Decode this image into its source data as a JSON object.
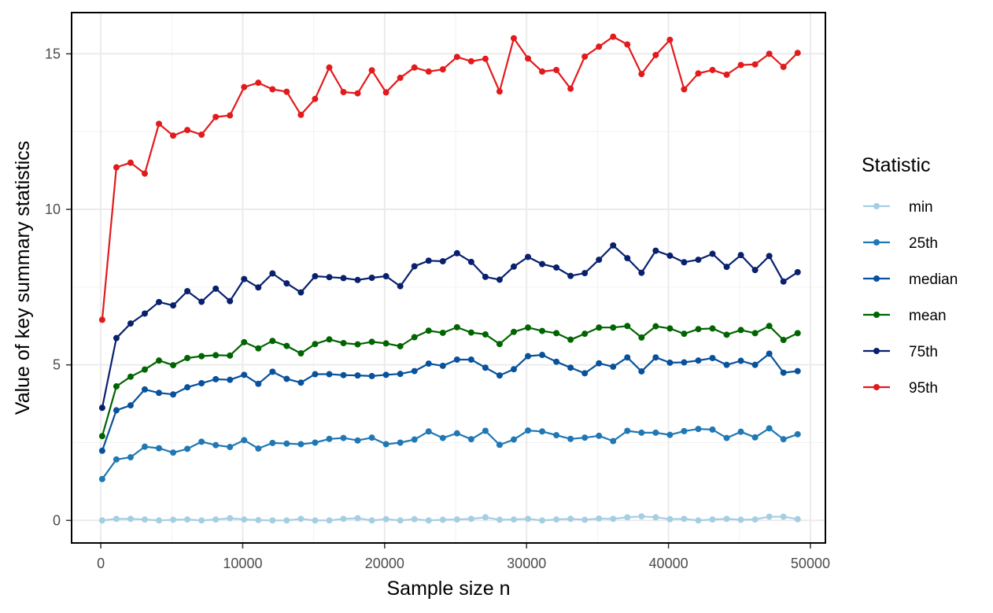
{
  "chart_data": {
    "type": "line",
    "title": "",
    "xlabel": "Sample size n",
    "ylabel": "Value of key summary statistics",
    "xlim": [
      -2000,
      51000
    ],
    "ylim": [
      -0.7,
      16.3
    ],
    "x_ticks": [
      0,
      10000,
      20000,
      30000,
      40000,
      50000
    ],
    "y_ticks": [
      0,
      5,
      10,
      15
    ],
    "x_minor_ticks": [
      5000,
      15000,
      25000,
      35000,
      45000
    ],
    "y_minor_ticks": [
      2.5,
      7.5,
      12.5
    ],
    "grid": true,
    "legend": {
      "title": "Statistic",
      "placement": "right"
    },
    "x": [
      100,
      1100,
      2100,
      3100,
      4100,
      5100,
      6100,
      7100,
      8100,
      9100,
      10100,
      11100,
      12100,
      13100,
      14100,
      15100,
      16100,
      17100,
      18100,
      19100,
      20100,
      21100,
      22100,
      23100,
      24100,
      25100,
      26100,
      27100,
      28100,
      29100,
      30100,
      31100,
      32100,
      33100,
      34100,
      35100,
      36100,
      37100,
      38100,
      39100,
      40100,
      41100,
      42100,
      43100,
      44100,
      45100,
      46100,
      47100,
      48100,
      49100
    ],
    "series": [
      {
        "name": "min",
        "color": "#a6cee3",
        "values": [
          0.0,
          0.05,
          0.05,
          0.03,
          0.0,
          0.02,
          0.03,
          0.0,
          0.03,
          0.07,
          0.03,
          0.01,
          0.0,
          0.0,
          0.05,
          0.0,
          0.0,
          0.05,
          0.07,
          0.0,
          0.04,
          0.0,
          0.04,
          0.0,
          0.02,
          0.03,
          0.05,
          0.1,
          0.02,
          0.03,
          0.05,
          0.0,
          0.03,
          0.05,
          0.02,
          0.06,
          0.05,
          0.1,
          0.13,
          0.1,
          0.04,
          0.05,
          0.0,
          0.03,
          0.05,
          0.02,
          0.03,
          0.12,
          0.12,
          0.04
        ]
      },
      {
        "name": "25th",
        "color": "#1f78b4",
        "values": [
          1.33,
          1.96,
          2.03,
          2.37,
          2.32,
          2.18,
          2.3,
          2.53,
          2.42,
          2.36,
          2.58,
          2.31,
          2.49,
          2.47,
          2.45,
          2.5,
          2.62,
          2.65,
          2.57,
          2.66,
          2.45,
          2.5,
          2.6,
          2.86,
          2.65,
          2.8,
          2.61,
          2.88,
          2.43,
          2.6,
          2.89,
          2.86,
          2.74,
          2.62,
          2.66,
          2.72,
          2.55,
          2.88,
          2.82,
          2.82,
          2.75,
          2.87,
          2.94,
          2.92,
          2.65,
          2.85,
          2.67,
          2.96,
          2.61,
          2.77
        ]
      },
      {
        "name": "median",
        "color": "#08519c",
        "values": [
          2.24,
          3.54,
          3.7,
          4.21,
          4.1,
          4.05,
          4.28,
          4.41,
          4.54,
          4.52,
          4.68,
          4.39,
          4.78,
          4.55,
          4.43,
          4.7,
          4.7,
          4.67,
          4.66,
          4.64,
          4.68,
          4.71,
          4.8,
          5.04,
          4.97,
          5.17,
          5.17,
          4.91,
          4.66,
          4.86,
          5.28,
          5.32,
          5.1,
          4.91,
          4.73,
          5.05,
          4.94,
          5.24,
          4.79,
          5.24,
          5.07,
          5.08,
          5.14,
          5.22,
          5.0,
          5.13,
          5.0,
          5.36,
          4.75,
          4.8
        ]
      },
      {
        "name": "mean",
        "color": "#006400",
        "values": [
          2.71,
          4.31,
          4.62,
          4.85,
          5.14,
          4.99,
          5.22,
          5.28,
          5.31,
          5.3,
          5.73,
          5.53,
          5.77,
          5.61,
          5.37,
          5.67,
          5.82,
          5.7,
          5.66,
          5.74,
          5.69,
          5.6,
          5.89,
          6.1,
          6.03,
          6.21,
          6.04,
          5.98,
          5.67,
          6.06,
          6.2,
          6.09,
          6.02,
          5.81,
          6.0,
          6.2,
          6.2,
          6.25,
          5.88,
          6.24,
          6.17,
          6.0,
          6.15,
          6.17,
          5.97,
          6.12,
          6.02,
          6.25,
          5.8,
          6.02
        ]
      },
      {
        "name": "75th",
        "color": "#08206e",
        "values": [
          3.62,
          5.86,
          6.33,
          6.65,
          7.02,
          6.91,
          7.37,
          7.03,
          7.45,
          7.05,
          7.76,
          7.49,
          7.94,
          7.62,
          7.33,
          7.85,
          7.82,
          7.79,
          7.73,
          7.8,
          7.85,
          7.53,
          8.17,
          8.35,
          8.33,
          8.59,
          8.31,
          7.83,
          7.74,
          8.16,
          8.47,
          8.24,
          8.13,
          7.86,
          7.95,
          8.38,
          8.84,
          8.43,
          7.96,
          8.67,
          8.51,
          8.3,
          8.38,
          8.57,
          8.15,
          8.53,
          8.05,
          8.5,
          7.68,
          7.98
        ]
      },
      {
        "name": "95th",
        "color": "#e31a1c",
        "values": [
          6.45,
          11.35,
          11.5,
          11.15,
          12.75,
          12.37,
          12.55,
          12.4,
          12.97,
          13.02,
          13.93,
          14.07,
          13.86,
          13.78,
          13.04,
          13.55,
          14.56,
          13.77,
          13.73,
          14.47,
          13.76,
          14.23,
          14.56,
          14.43,
          14.5,
          14.9,
          14.76,
          14.84,
          13.79,
          15.5,
          14.85,
          14.43,
          14.48,
          13.88,
          14.91,
          15.23,
          15.55,
          15.3,
          14.35,
          14.96,
          15.45,
          13.86,
          14.37,
          14.48,
          14.33,
          14.64,
          14.66,
          15.0,
          14.58,
          15.03
        ]
      }
    ]
  }
}
